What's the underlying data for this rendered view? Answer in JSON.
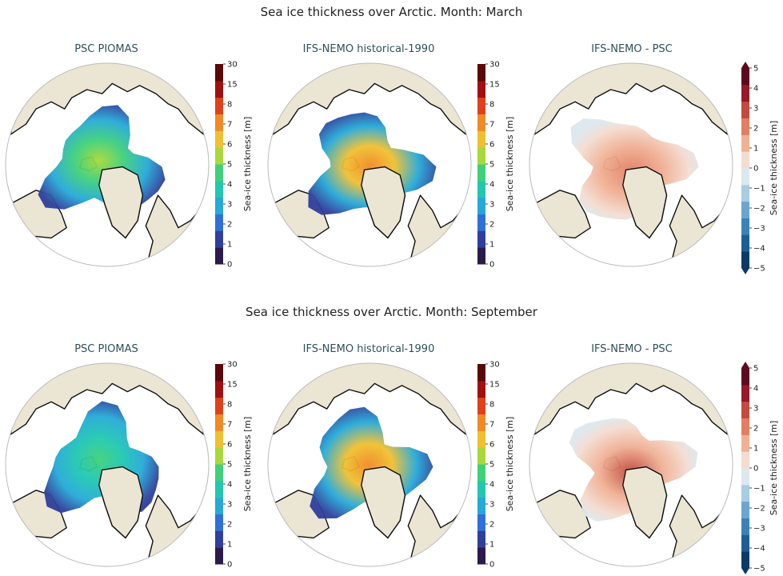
{
  "figure": {
    "rows": [
      {
        "title": "Sea ice thickness over Arctic. Month: March",
        "panels": [
          {
            "title": "PSC PIOMAS",
            "style": "abs",
            "intensity": 0.35
          },
          {
            "title": "IFS-NEMO historical-1990",
            "style": "abs",
            "intensity": 0.55
          },
          {
            "title": "IFS-NEMO -  PSC",
            "style": "diff",
            "intensity": 0.35
          }
        ]
      },
      {
        "title": "Sea ice thickness over Arctic. Month: September",
        "panels": [
          {
            "title": "PSC PIOMAS",
            "style": "abs",
            "intensity": 0.3
          },
          {
            "title": "IFS-NEMO historical-1990",
            "style": "abs",
            "intensity": 0.55
          },
          {
            "title": "IFS-NEMO -  PSC",
            "style": "diff",
            "intensity": 0.55
          }
        ]
      }
    ]
  },
  "colorbars": {
    "absolute": {
      "label": "Sea-ice thickness [m]",
      "ticks": [
        "0",
        "1",
        "2",
        "3",
        "4",
        "5",
        "6",
        "7",
        "8",
        "15",
        "30"
      ],
      "colors": [
        "#2b1a4a",
        "#2f3f9a",
        "#2f6fd8",
        "#25a9d8",
        "#20c8b0",
        "#3fd07a",
        "#a8d83a",
        "#f0c030",
        "#f08a25",
        "#e0401a",
        "#a01010",
        "#5a0808"
      ]
    },
    "difference": {
      "label": "Sea-ice thickness [m]",
      "ticks": [
        "−5",
        "−4",
        "−3",
        "−2",
        "−1",
        "0",
        "1",
        "2",
        "3",
        "4",
        "5"
      ],
      "colors": [
        "#0a3a66",
        "#1d5e96",
        "#3b82b8",
        "#6ba6d0",
        "#a8cce2",
        "#dce8ee",
        "#f3dcd0",
        "#f0b094",
        "#e27e62",
        "#c24a3e",
        "#961a28",
        "#5e0a1e"
      ]
    }
  },
  "colors": {
    "land": "#ebe5d3",
    "map_outline": "#bbbbbb",
    "coast": "#111111"
  }
}
